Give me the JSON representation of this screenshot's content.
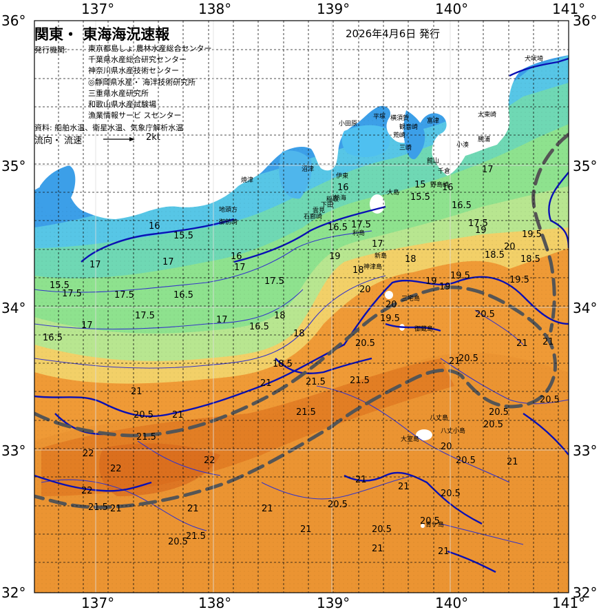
{
  "header": {
    "title": "関東・ 東海海況速報",
    "date": "2026年4月6日 発行",
    "issuer_label": "発行機関:",
    "issuers": [
      "東京都島しょ 農林水産総合センター",
      "千葉県水産総合研究センター",
      "神奈川県水産技術センター",
      "◎静岡県水産・ 海洋技術研究所",
      "三重県水産研究所",
      "和歌山県水産試験場",
      "漁業情報サービ スセンター"
    ],
    "sources": "資料: 船舶水温、衛星水温、気象庁解析水温",
    "flow_label": "流向・ 流速",
    "flow_scale": "2kt"
  },
  "axes": {
    "lon_labels": [
      "137°",
      "138°",
      "139°",
      "140°",
      "141°"
    ],
    "lat_labels": [
      "36°",
      "35°",
      "34°",
      "33°",
      "32°"
    ]
  },
  "colors": {
    "land": "#ffffff",
    "temp_15": "#3a8fe6",
    "temp_16": "#4fc0f0",
    "temp_17": "#6fd8c4",
    "temp_18": "#7ee08a",
    "temp_19": "#c8ec8c",
    "temp_20": "#f4e070",
    "temp_21": "#f0a040",
    "temp_22": "#e8862a",
    "temp_23": "#d4641c",
    "kuroshio_axis": "#555555",
    "isotherm_major": "#0a10b4",
    "isotherm_minor": "#3a3ad0"
  },
  "places": [
    "犬吠埼",
    "平塚",
    "横須賀",
    "富津",
    "小田原",
    "観音崎",
    "荒崎",
    "三崎",
    "太東崎",
    "勝浦",
    "小湊",
    "館山",
    "千倉",
    "野島崎",
    "伊東",
    "稲取",
    "下田",
    "石廊崎",
    "雲見",
    "熱海",
    "沼津",
    "焼津",
    "御前崎",
    "地頭方",
    "大島",
    "利島",
    "新島",
    "神津島",
    "三宅島",
    "御蔵島",
    "八丈島",
    "青ヶ島",
    "大室島",
    "八丈小島"
  ],
  "contour_labels": [
    "16",
    "15.5",
    "17",
    "17.5",
    "16.5",
    "17",
    "16",
    "15.5",
    "17",
    "17.5",
    "16.5",
    "17.5",
    "17",
    "17",
    "18",
    "17.5",
    "16.5",
    "15.5",
    "16",
    "16.5",
    "17",
    "17.5",
    "18",
    "18.5",
    "19",
    "18",
    "20",
    "19.5",
    "20.5",
    "21",
    "21.5",
    "21",
    "20.5",
    "21.5",
    "21",
    "22",
    "21.5",
    "22",
    "21.5",
    "21",
    "20.5",
    "21",
    "22",
    "21",
    "20.5",
    "21",
    "20.5",
    "20.5",
    "21",
    "20.5",
    "21",
    "20",
    "21.5",
    "21",
    "20.5",
    "19.5",
    "18.5",
    "20",
    "19",
    "18",
    "17.5",
    "17",
    "16.5",
    "16",
    "15",
    "18.5",
    "19",
    "19.5",
    "20.5",
    "21",
    "20.5",
    "21",
    "20.5",
    "21",
    "21",
    "20",
    "19.5",
    "19",
    "20.5",
    "21.5",
    "20.5",
    "21",
    "22"
  ]
}
